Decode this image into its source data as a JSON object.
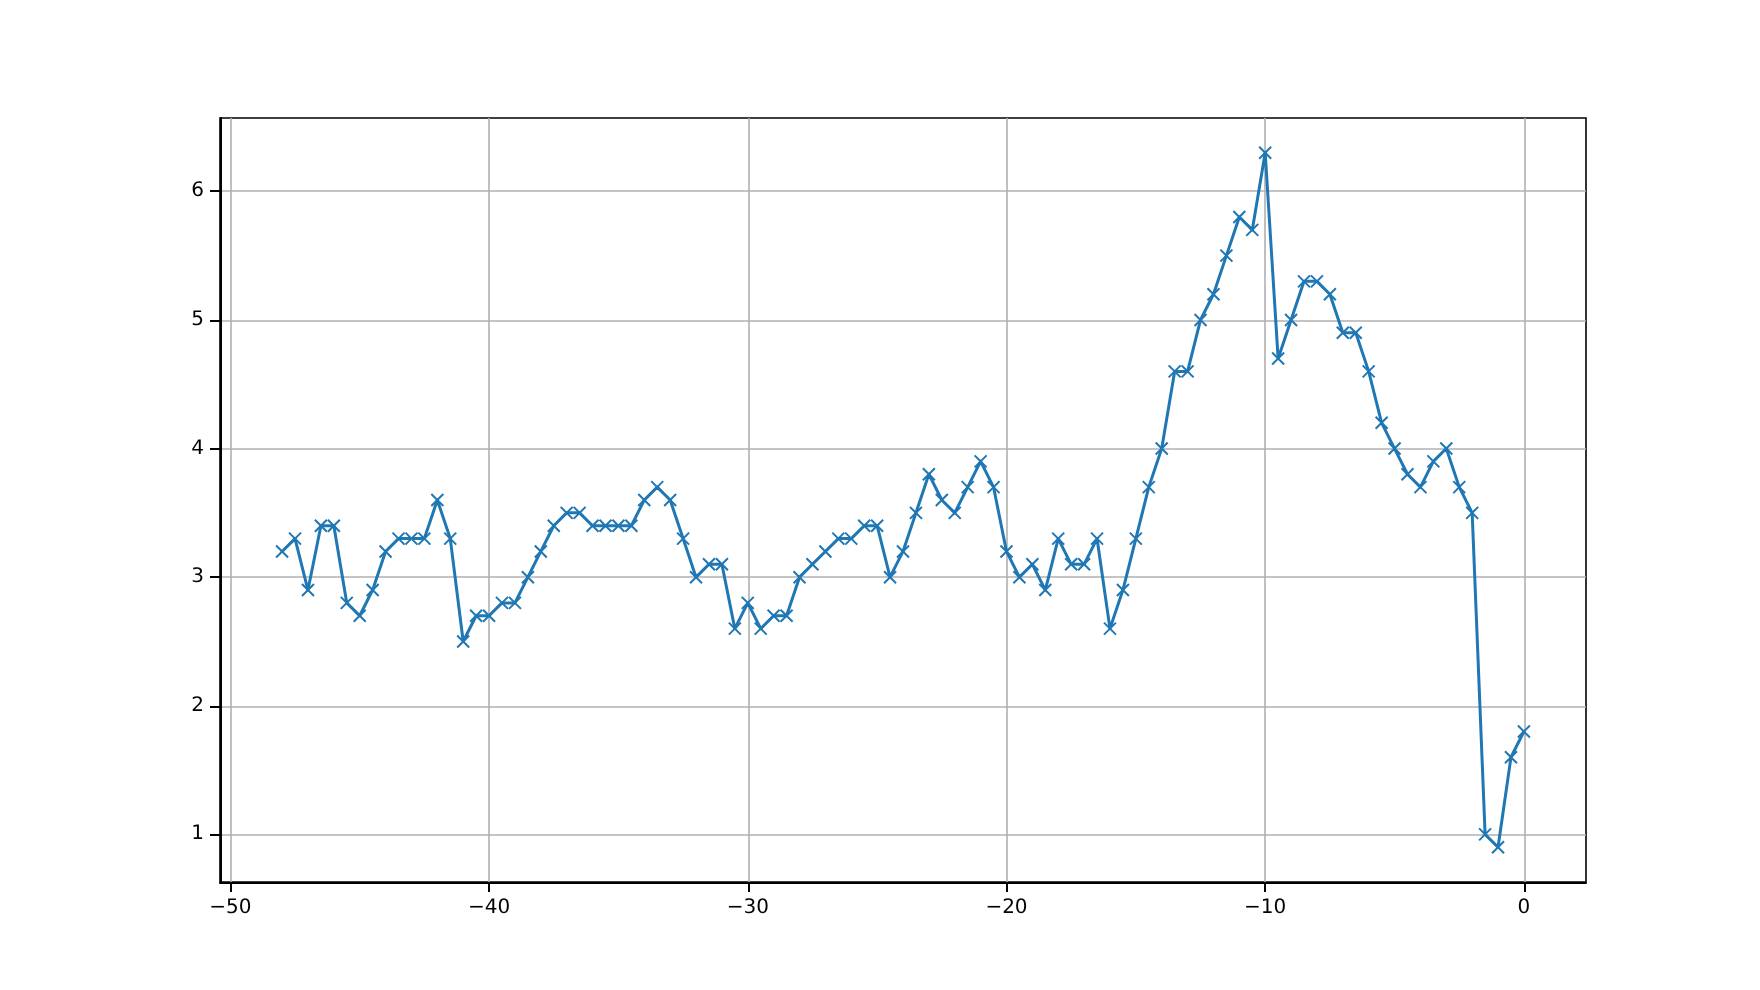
{
  "chart_data": {
    "type": "line",
    "x": [
      -48,
      -47.5,
      -47,
      -46.5,
      -46,
      -45.5,
      -45,
      -44.5,
      -44,
      -43.5,
      -43,
      -42.5,
      -42,
      -41.5,
      -41,
      -40.5,
      -40,
      -39.5,
      -39,
      -38.5,
      -38,
      -37.5,
      -37,
      -36.5,
      -36,
      -35.5,
      -35,
      -34.5,
      -34,
      -33.5,
      -33,
      -32.5,
      -32,
      -31.5,
      -31,
      -30.5,
      -30,
      -29.5,
      -29,
      -28.5,
      -28,
      -27.5,
      -27,
      -26.5,
      -26,
      -25.5,
      -25,
      -24.5,
      -24,
      -23.5,
      -23,
      -22.5,
      -22,
      -21.5,
      -21,
      -20.5,
      -20,
      -19.5,
      -19,
      -18.5,
      -18,
      -17.5,
      -17,
      -16.5,
      -16,
      -15.5,
      -15,
      -14.5,
      -14,
      -13.5,
      -13,
      -12.5,
      -12,
      -11.5,
      -11,
      -10.5,
      -10,
      -9.5,
      -9,
      -8.5,
      -8,
      -7.5,
      -7,
      -6.5,
      -6,
      -5.5,
      -5,
      -4.5,
      -4,
      -3.5,
      -3,
      -2.5,
      -2,
      -1.5,
      -1,
      -0.5,
      0
    ],
    "series": [
      {
        "color": "#1f77b4",
        "values": [
          3.2,
          3.3,
          2.9,
          3.4,
          3.4,
          2.8,
          2.7,
          2.9,
          3.2,
          3.3,
          3.3,
          3.3,
          3.6,
          3.3,
          2.5,
          2.7,
          2.7,
          2.8,
          2.8,
          3.0,
          3.2,
          3.4,
          3.5,
          3.5,
          3.4,
          3.4,
          3.4,
          3.4,
          3.6,
          3.7,
          3.6,
          3.3,
          3.0,
          3.1,
          3.1,
          2.6,
          2.8,
          2.6,
          2.7,
          2.7,
          3.0,
          3.1,
          3.2,
          3.3,
          3.3,
          3.4,
          3.4,
          3.0,
          3.2,
          3.5,
          3.8,
          3.6,
          3.5,
          3.7,
          3.9,
          3.7,
          3.2,
          3.0,
          3.1,
          2.9,
          3.3,
          3.1,
          3.1,
          3.3,
          2.6,
          2.9,
          3.3,
          3.7,
          4.0,
          4.6,
          4.6,
          5.0,
          5.2,
          5.5,
          5.8,
          5.7,
          6.3,
          4.7,
          5.0,
          5.3,
          5.3,
          5.2,
          4.9,
          4.9,
          4.6,
          4.2,
          4.0,
          3.8,
          3.7,
          3.9,
          4.0,
          3.7,
          3.5,
          1.0,
          0.9,
          1.6,
          1.8
        ]
      }
    ],
    "xlim": [
      -50.4,
      2.4
    ],
    "ylim": [
      0.63,
      6.57
    ],
    "xticks": [
      -50,
      -40,
      -30,
      -20,
      -10,
      0
    ],
    "yticks": [
      1,
      2,
      3,
      4,
      5,
      6
    ],
    "grid": true,
    "marker": "cross",
    "line_style": "solid"
  }
}
